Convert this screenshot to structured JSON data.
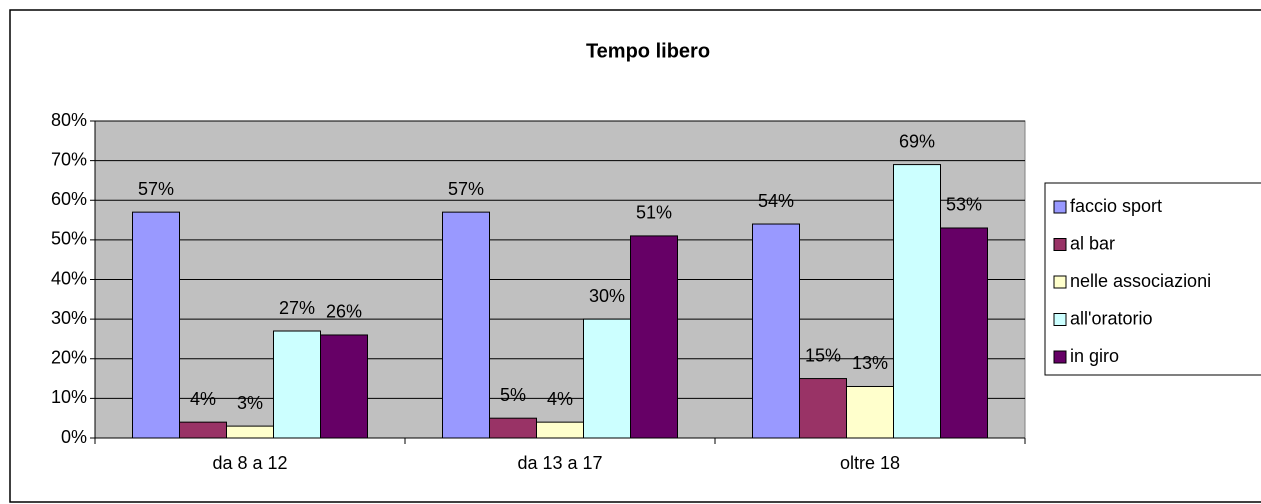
{
  "chart_data": {
    "type": "bar",
    "title": "Tempo libero",
    "categories": [
      "da 8 a 12",
      "da 13 a 17",
      "oltre 18"
    ],
    "series": [
      {
        "name": "faccio sport",
        "color": "#9999ff",
        "values": [
          57,
          57,
          54
        ],
        "value_labels": [
          "57%",
          "57%",
          "54%"
        ]
      },
      {
        "name": "al bar",
        "color": "#993366",
        "values": [
          4,
          5,
          15
        ],
        "value_labels": [
          "4%",
          "5%",
          "15%"
        ]
      },
      {
        "name": "nelle associazioni",
        "color": "#ffffcc",
        "values": [
          3,
          4,
          13
        ],
        "value_labels": [
          "3%",
          "4%",
          "13%"
        ]
      },
      {
        "name": "all'oratorio",
        "color": "#ccffff",
        "values": [
          27,
          30,
          69
        ],
        "value_labels": [
          "27%",
          "30%",
          "69%"
        ]
      },
      {
        "name": "in giro",
        "color": "#660066",
        "values": [
          26,
          51,
          53
        ],
        "value_labels": [
          "26%",
          "51%",
          "53%"
        ]
      }
    ],
    "ylim": [
      0,
      80
    ],
    "yticks": [
      {
        "value": 0,
        "label": "0%"
      },
      {
        "value": 10,
        "label": "10%"
      },
      {
        "value": 20,
        "label": "20%"
      },
      {
        "value": 30,
        "label": "30%"
      },
      {
        "value": 40,
        "label": "40%"
      },
      {
        "value": 50,
        "label": "50%"
      },
      {
        "value": 60,
        "label": "60%"
      },
      {
        "value": 70,
        "label": "70%"
      },
      {
        "value": 80,
        "label": "80%"
      }
    ],
    "grid": true,
    "legend": "right",
    "plot_background": "#c0c0c0"
  }
}
